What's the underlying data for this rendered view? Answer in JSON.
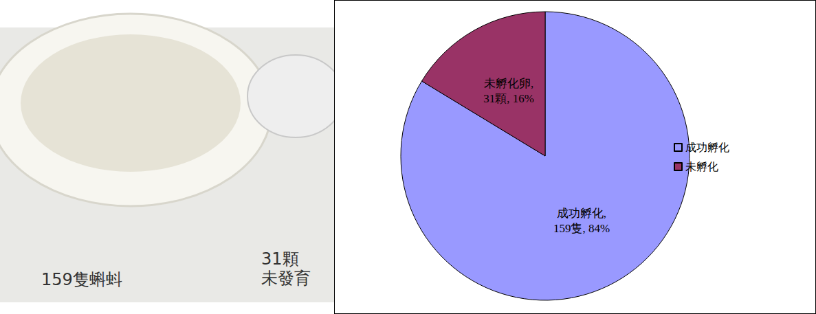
{
  "chart_data": {
    "type": "pie",
    "categories": [
      "成功孵化",
      "未孵化"
    ],
    "values": [
      159,
      31
    ],
    "value_labels": [
      "成功孵化,\n159隻, 84%",
      "未孵化卵,\n31顆, 16%"
    ],
    "colors": [
      "#9999ff",
      "#993366"
    ],
    "data_labels": true,
    "legend": "right"
  },
  "photo": {
    "captions": [
      "159隻蝌蚪",
      "31顆\n未發育"
    ]
  }
}
